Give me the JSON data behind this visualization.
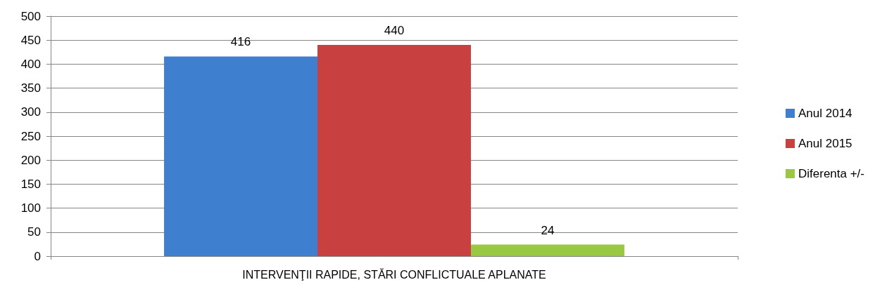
{
  "chart_data": {
    "type": "bar",
    "categories": [
      "INTERVENŢII RAPIDE, STĂRI CONFLICTUALE APLANATE"
    ],
    "series": [
      {
        "name": "Anul 2014",
        "color": "#3f7fcf",
        "values": [
          416
        ]
      },
      {
        "name": "Anul 2015",
        "color": "#c94040",
        "values": [
          440
        ]
      },
      {
        "name": "Diferenta +/-",
        "color": "#9bc843",
        "values": [
          24
        ]
      }
    ],
    "ylim": [
      0,
      500
    ],
    "yticks": [
      0,
      50,
      100,
      150,
      200,
      250,
      300,
      350,
      400,
      450,
      500
    ],
    "grid": "y",
    "legend": "right",
    "data_labels": true
  }
}
